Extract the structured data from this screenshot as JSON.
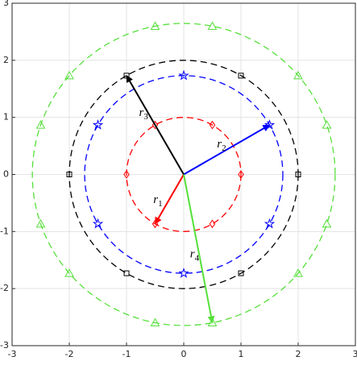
{
  "chart_data": {
    "type": "vector-circles",
    "xlim": [
      -3,
      3
    ],
    "ylim": [
      -3,
      3
    ],
    "xticks": [
      -3,
      -2,
      -1,
      0,
      1,
      2,
      3
    ],
    "yticks": [
      -3,
      -2,
      -1,
      0,
      1,
      2,
      3
    ],
    "grid": true,
    "series": [
      {
        "color": "#ff0000",
        "marker": "diamond",
        "radius": 1,
        "x": [
          1,
          0.5,
          -0.5,
          -1,
          -0.5,
          0.5
        ],
        "y": [
          0,
          0.866,
          0.866,
          0,
          -0.866,
          -0.866
        ],
        "vector": [
          -0.5,
          -0.866
        ],
        "label": "r",
        "subscript": "1"
      },
      {
        "color": "#0000ff",
        "marker": "star",
        "radius": 1.732,
        "x": [
          1.5,
          0,
          -1.5,
          -1.5,
          0,
          1.5
        ],
        "y": [
          0.866,
          1.732,
          0.866,
          -0.866,
          -1.732,
          -0.866
        ],
        "vector": [
          1.5,
          0.866
        ],
        "label": "r",
        "subscript": "2"
      },
      {
        "color": "#000000",
        "marker": "square",
        "radius": 2,
        "x": [
          2,
          1,
          -1,
          -2,
          -1,
          1
        ],
        "y": [
          0,
          1.732,
          1.732,
          0,
          -1.732,
          -1.732
        ],
        "vector": [
          -1,
          1.732
        ],
        "label": "r",
        "subscript": "3"
      },
      {
        "color": "#55e03a",
        "marker": "triangle",
        "radius": 2.646,
        "x": [
          2.5,
          2,
          0.5,
          -0.5,
          -2,
          -2.5,
          -2.5,
          -2,
          -0.5,
          0.5,
          2,
          2.5
        ],
        "y": [
          0.866,
          1.732,
          2.598,
          2.598,
          1.732,
          0.866,
          -0.866,
          -1.732,
          -2.598,
          -2.598,
          -1.732,
          -0.866
        ],
        "vector": [
          0.5,
          -2.598
        ],
        "label": "r",
        "subscript": "4"
      }
    ]
  }
}
